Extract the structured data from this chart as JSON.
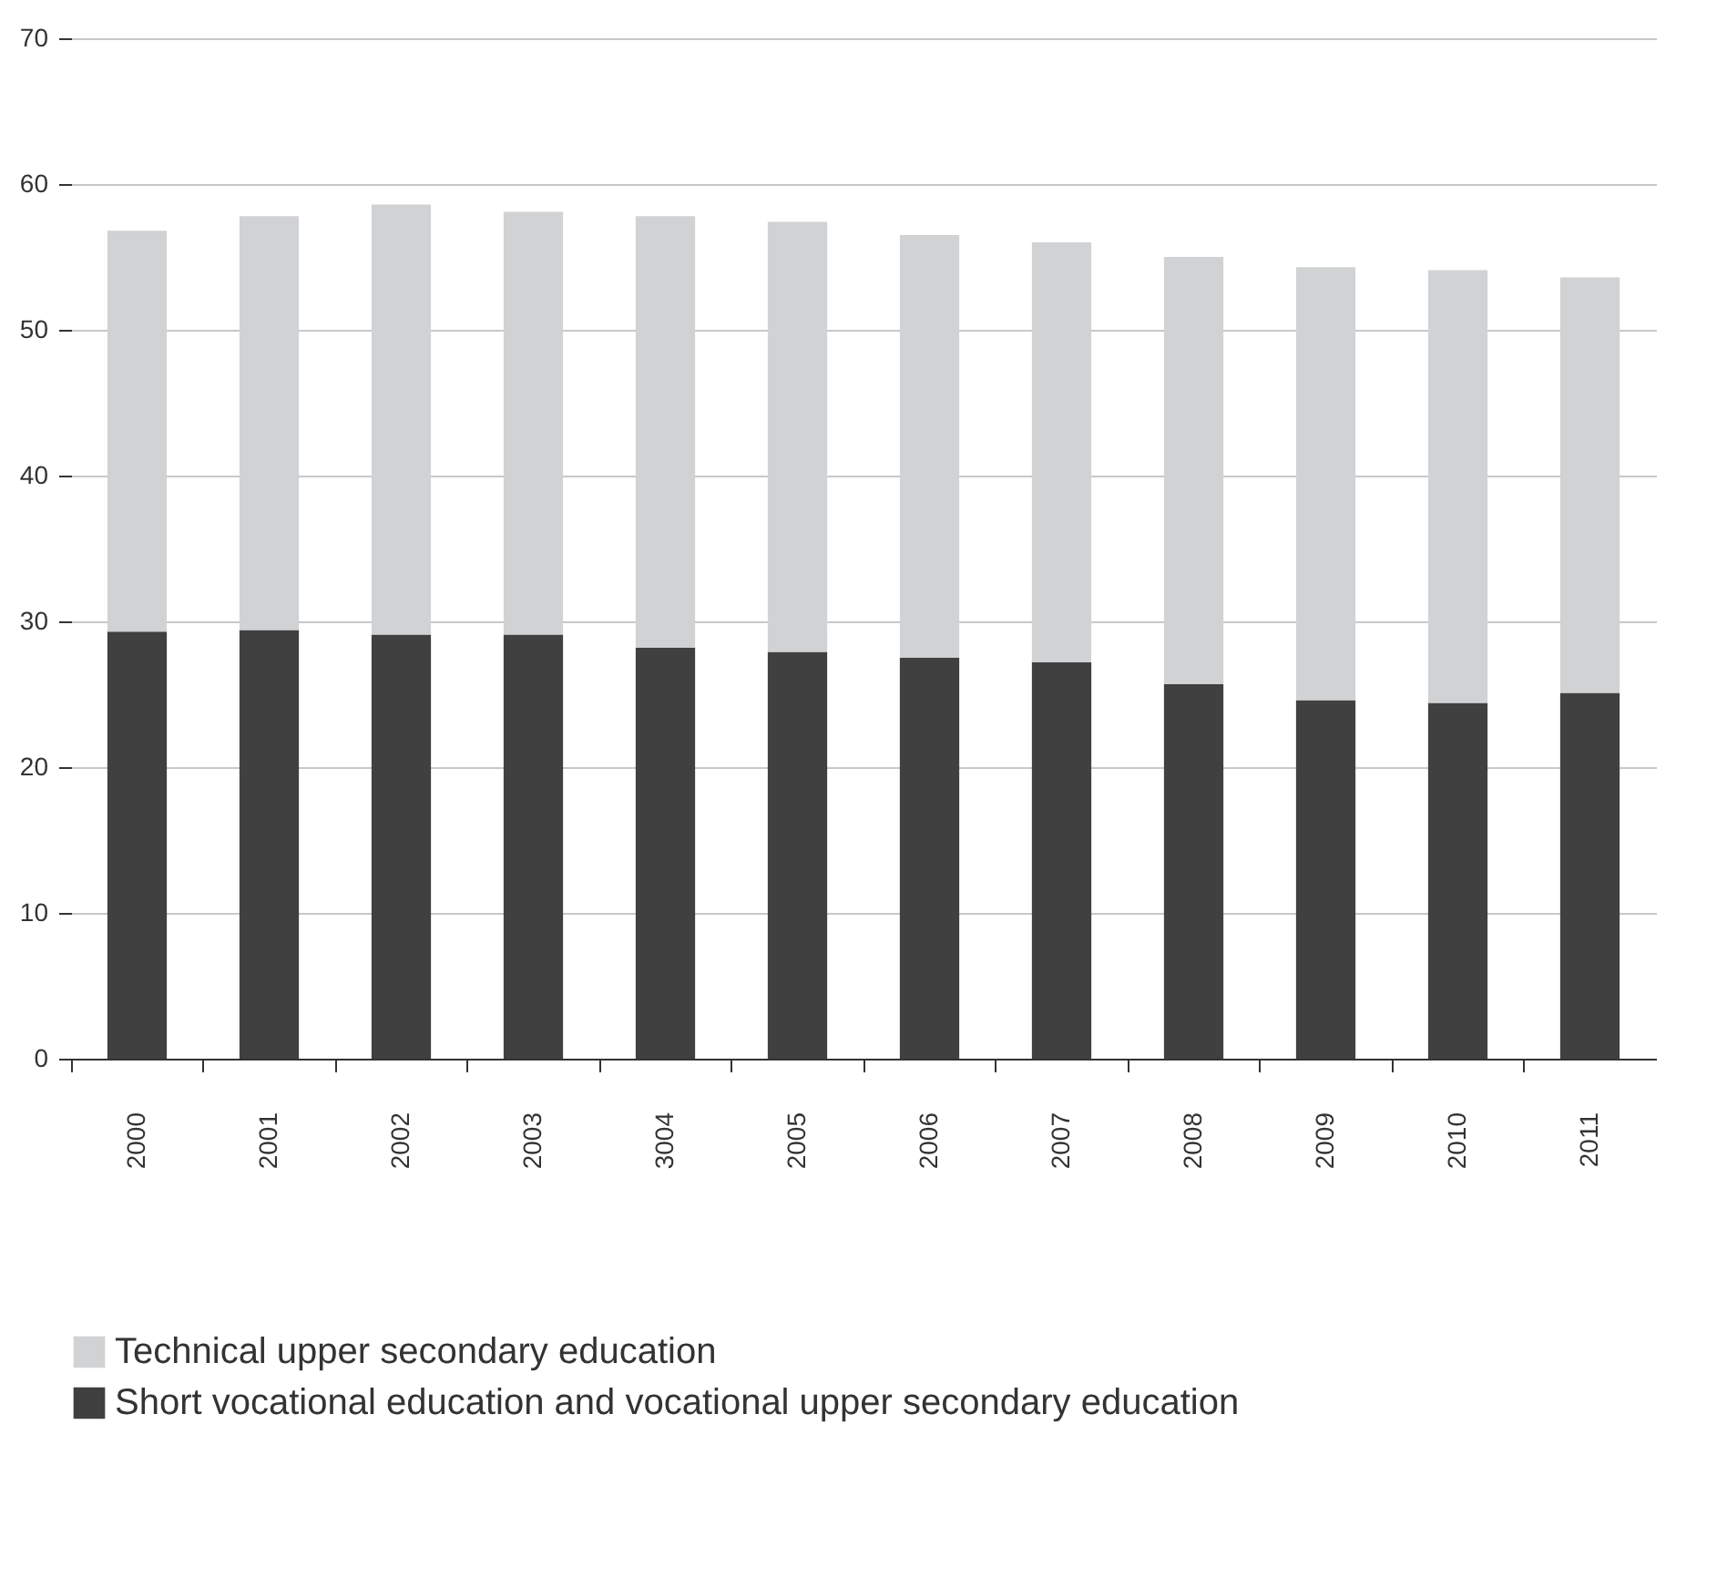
{
  "chart_data": {
    "type": "bar",
    "stacked": true,
    "categories": [
      "2000",
      "2001",
      "2002",
      "2003",
      "3004",
      "2005",
      "2006",
      "2007",
      "2008",
      "2009",
      "2010",
      "2011"
    ],
    "series": [
      {
        "name": "Short vocational education and vocational upper secondary education",
        "color": "#404040",
        "values": [
          29.3,
          29.4,
          29.1,
          29.1,
          28.2,
          27.9,
          27.5,
          27.2,
          25.7,
          24.6,
          24.4,
          25.1
        ]
      },
      {
        "name": "Technical upper secondary education",
        "color": "#d1d2d4",
        "values": [
          27.5,
          28.4,
          29.5,
          29.0,
          29.6,
          29.5,
          29.0,
          28.8,
          29.3,
          29.7,
          29.7,
          28.5
        ]
      }
    ],
    "ylim": [
      0,
      70
    ],
    "yticks": [
      0,
      10,
      20,
      30,
      40,
      50,
      60,
      70
    ],
    "grid": "y",
    "legend": "bottom left"
  }
}
